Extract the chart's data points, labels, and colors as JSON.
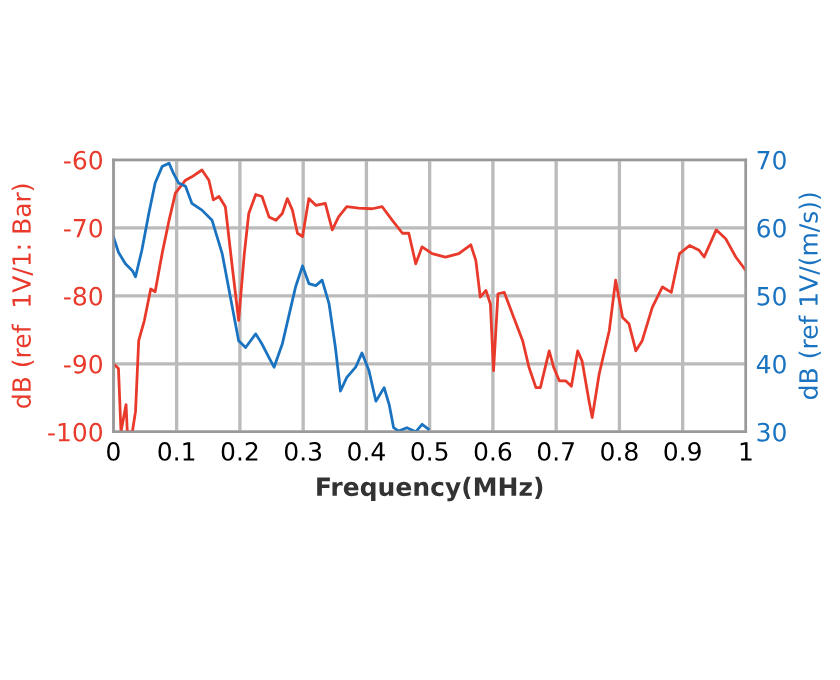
{
  "chart_data": {
    "type": "line",
    "xlabel": "Frequency(MHz)",
    "ylabel": "dB (ref  1V/1: Bar)",
    "y2label": "dB (ref 1V/(m/s))",
    "xlim": [
      0,
      1
    ],
    "xticks": [
      0,
      0.1,
      0.2,
      0.3,
      0.4,
      0.5,
      0.6,
      0.7,
      0.8,
      0.9,
      1
    ],
    "ylim": [
      -100,
      -60
    ],
    "yticks": [
      -100,
      -90,
      -80,
      -70,
      -60
    ],
    "y2lim": [
      30,
      70
    ],
    "y2ticks": [
      30,
      40,
      50,
      60,
      70
    ],
    "grid": true,
    "legend": false,
    "line_style": "solid",
    "marker": "none",
    "series": [
      {
        "color": "#e8392a",
        "x": [
          0,
          0.008,
          0.012,
          0.02,
          0.022,
          0.03,
          0.035,
          0.04,
          0.049,
          0.059,
          0.066,
          0.077,
          0.088,
          0.098,
          0.114,
          0.124,
          0.14,
          0.151,
          0.158,
          0.167,
          0.177,
          0.188,
          0.198,
          0.207,
          0.214,
          0.225,
          0.235,
          0.246,
          0.257,
          0.267,
          0.275,
          0.283,
          0.291,
          0.299,
          0.309,
          0.32,
          0.335,
          0.346,
          0.356,
          0.369,
          0.388,
          0.409,
          0.425,
          0.441,
          0.457,
          0.467,
          0.478,
          0.488,
          0.504,
          0.525,
          0.546,
          0.565,
          0.573,
          0.58,
          0.589,
          0.596,
          0.601,
          0.608,
          0.618,
          0.631,
          0.647,
          0.657,
          0.668,
          0.675,
          0.689,
          0.696,
          0.705,
          0.715,
          0.724,
          0.734,
          0.741,
          0.752,
          0.757,
          0.768,
          0.784,
          0.794,
          0.805,
          0.815,
          0.826,
          0.836,
          0.852,
          0.868,
          0.882,
          0.895,
          0.911,
          0.926,
          0.934,
          0.953,
          0.968,
          0.984,
          1.0
        ],
        "values": [
          -90,
          -90.7,
          -100,
          -96,
          -100,
          -100,
          -97,
          -86.6,
          -83.6,
          -79,
          -79.4,
          -73.8,
          -68.9,
          -64.9,
          -63,
          -62.5,
          -61.5,
          -63,
          -65.9,
          -65.4,
          -66.9,
          -75.8,
          -83.6,
          -73.8,
          -67.9,
          -65.1,
          -65.4,
          -68.4,
          -68.9,
          -67.9,
          -65.7,
          -67.4,
          -70.8,
          -71.3,
          -65.7,
          -66.7,
          -66.4,
          -70.3,
          -68.4,
          -66.9,
          -67.1,
          -67.2,
          -66.9,
          -68.9,
          -70.8,
          -70.8,
          -75.3,
          -72.8,
          -73.8,
          -74.3,
          -73.8,
          -72.5,
          -74.8,
          -80.2,
          -79.2,
          -81.2,
          -91,
          -79.7,
          -79.5,
          -82.7,
          -86.6,
          -90.5,
          -93.5,
          -93.5,
          -88.1,
          -90.5,
          -92.5,
          -92.5,
          -93.3,
          -88.1,
          -89.6,
          -95.5,
          -97.9,
          -91.5,
          -85.1,
          -77.7,
          -83.2,
          -84.1,
          -88.1,
          -86.6,
          -81.7,
          -78.7,
          -79.5,
          -73.8,
          -72.6,
          -73.3,
          -74.3,
          -70.3,
          -71.6,
          -74.3,
          -76.3
        ]
      },
      {
        "color": "#1a73c0",
        "axis": "y2",
        "x": [
          0,
          0.008,
          0.019,
          0.03,
          0.035,
          0.045,
          0.056,
          0.066,
          0.077,
          0.088,
          0.095,
          0.103,
          0.114,
          0.124,
          0.14,
          0.156,
          0.172,
          0.188,
          0.198,
          0.209,
          0.225,
          0.235,
          0.246,
          0.254,
          0.267,
          0.278,
          0.288,
          0.299,
          0.309,
          0.32,
          0.33,
          0.341,
          0.351,
          0.359,
          0.369,
          0.383,
          0.393,
          0.404,
          0.415,
          0.428,
          0.436,
          0.443,
          0.451,
          0.464,
          0.478,
          0.488,
          0.498
        ],
        "values": [
          58.7,
          56.4,
          54.7,
          53.7,
          52.8,
          56.7,
          62.1,
          66.6,
          69,
          69.5,
          68,
          66.6,
          66.1,
          63.6,
          62.6,
          61.1,
          56.2,
          48.3,
          43.4,
          42.4,
          44.4,
          42.9,
          40.9,
          39.5,
          42.9,
          47.3,
          51.3,
          54.4,
          51.8,
          51.5,
          52.3,
          48.8,
          42.4,
          36,
          38,
          39.5,
          41.6,
          39,
          34.5,
          36.5,
          34,
          30.6,
          30.1,
          30.6,
          30,
          31.1,
          30.4
        ]
      }
    ]
  }
}
